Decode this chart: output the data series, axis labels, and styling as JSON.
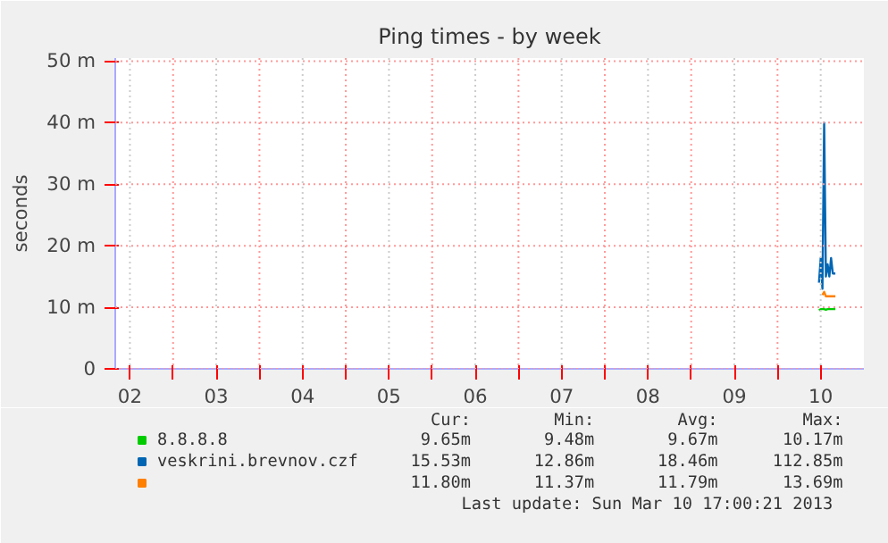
{
  "chart_data": {
    "type": "line",
    "title": "Ping times - by week",
    "ylabel": "seconds",
    "x": [
      10.48,
      10.5,
      10.52,
      10.54,
      10.56,
      10.58,
      10.6,
      10.62,
      10.64,
      10.67
    ],
    "xlim": [
      2.33,
      11.0
    ],
    "xticks": [
      {
        "value": 2.5,
        "label": "02"
      },
      {
        "value": 3,
        "label": null
      },
      {
        "value": 3.5,
        "label": "03"
      },
      {
        "value": 4,
        "label": null
      },
      {
        "value": 4.5,
        "label": "04"
      },
      {
        "value": 5,
        "label": null
      },
      {
        "value": 5.5,
        "label": "05"
      },
      {
        "value": 6,
        "label": null
      },
      {
        "value": 6.5,
        "label": "06"
      },
      {
        "value": 7,
        "label": null
      },
      {
        "value": 7.5,
        "label": "07"
      },
      {
        "value": 8,
        "label": null
      },
      {
        "value": 8.5,
        "label": "08"
      },
      {
        "value": 9,
        "label": null
      },
      {
        "value": 9.5,
        "label": "09"
      },
      {
        "value": 10,
        "label": null
      },
      {
        "value": 10.5,
        "label": "10"
      }
    ],
    "ylim": [
      0,
      50.5
    ],
    "yticks": [
      {
        "value": 0,
        "label": "0"
      },
      {
        "value": 10,
        "label": "10 m"
      },
      {
        "value": 20,
        "label": "20 m"
      },
      {
        "value": 30,
        "label": "30 m"
      },
      {
        "value": 40,
        "label": "40 m"
      },
      {
        "value": 50,
        "label": "50 m"
      }
    ],
    "grid": true,
    "legend": "bottom",
    "series": [
      {
        "name": "8.8.8.8",
        "color": "#00cc00",
        "values": [
          9.5,
          9.7,
          9.7,
          9.7,
          9.6,
          9.7,
          9.7,
          9.7,
          9.7,
          9.7
        ]
      },
      {
        "name": "veskrini.brevnov.czf",
        "color": "#0066b3",
        "values": [
          14,
          18,
          13,
          40,
          15,
          17,
          15,
          18,
          15.5,
          15.5
        ]
      },
      {
        "color": "#ff8000",
        "values": [
          null,
          null,
          12,
          12.5,
          11.8,
          11.8,
          11.8,
          11.8,
          11.8,
          11.8
        ]
      }
    ],
    "annotations": [
      "Cur:",
      "Min:",
      "Avg:",
      "Max:",
      "9.65m",
      "9.48m",
      "9.67m",
      "10.17m",
      "15.53m",
      "12.86m",
      "18.46m",
      "112.85m",
      "11.80m",
      "11.37m",
      "11.79m",
      "13.69m",
      "Last update:  Sun Mar 10 17:00:21 2013"
    ]
  }
}
